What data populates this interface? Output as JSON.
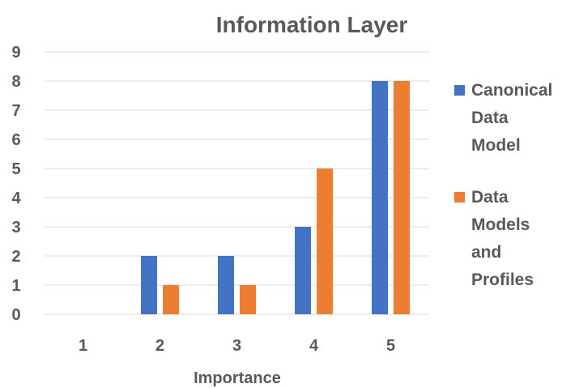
{
  "chart_data": {
    "type": "bar",
    "title": "Information Layer",
    "xlabel": "Importance",
    "ylabel": "",
    "categories": [
      "1",
      "2",
      "3",
      "4",
      "5"
    ],
    "series": [
      {
        "name": "Canonical Data Model",
        "legend_lines": [
          "Canonical",
          "Data",
          "Model"
        ],
        "values": [
          0,
          2,
          2,
          3,
          8
        ],
        "color": "#4472c4"
      },
      {
        "name": "Data Models and Profiles",
        "legend_lines": [
          "Data",
          "Models",
          "and",
          "Profiles"
        ],
        "values": [
          0,
          1,
          1,
          5,
          8
        ],
        "color": "#ed7d31"
      }
    ],
    "yticks": [
      "0",
      "1",
      "2",
      "3",
      "4",
      "5",
      "6",
      "7",
      "8",
      "9"
    ],
    "ylim": [
      0,
      9
    ],
    "grid": true,
    "legend": "right"
  }
}
